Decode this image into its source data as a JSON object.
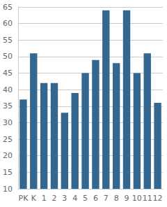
{
  "chart_data": {
    "type": "bar",
    "categories": [
      "PK",
      "K",
      "1",
      "2",
      "3",
      "4",
      "5",
      "6",
      "7",
      "8",
      "9",
      "10",
      "11",
      "12"
    ],
    "values": [
      37,
      51,
      42,
      42,
      33,
      39,
      45,
      49,
      64,
      48,
      64,
      45,
      51,
      36
    ],
    "color": "#346790",
    "ylim": [
      10,
      65
    ],
    "yticks": [
      10,
      15,
      20,
      25,
      30,
      35,
      40,
      45,
      50,
      55,
      60,
      65
    ],
    "grid": true
  }
}
